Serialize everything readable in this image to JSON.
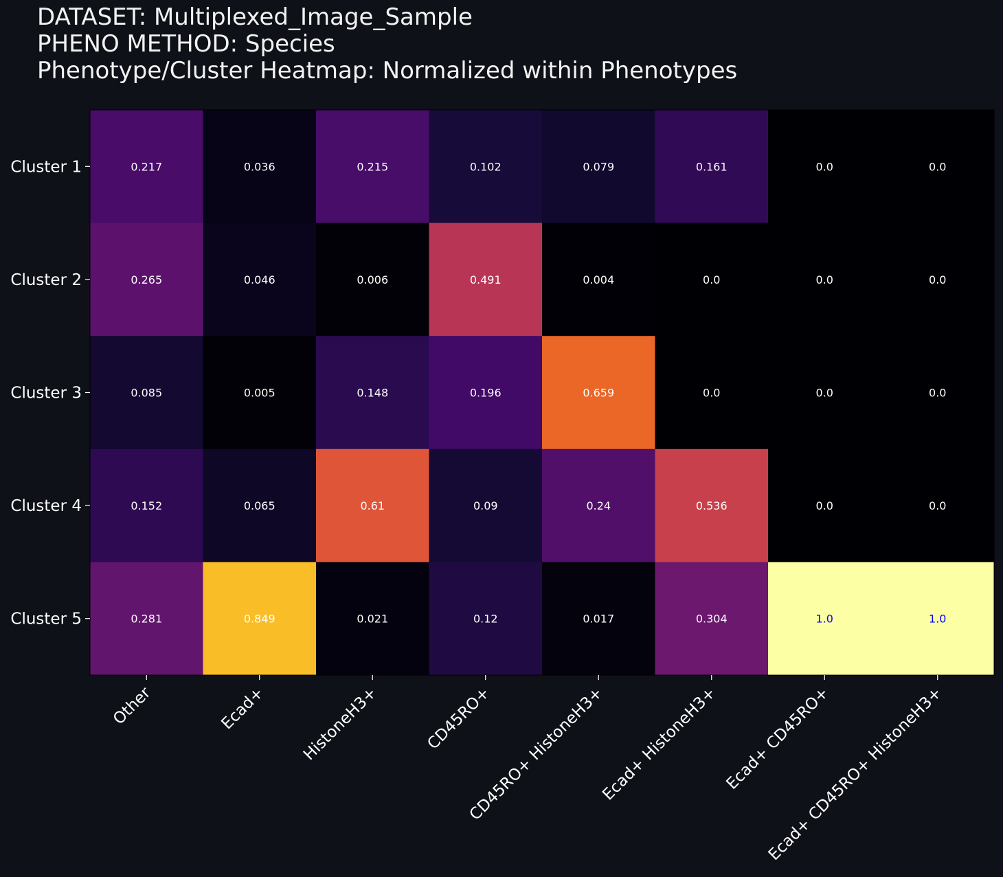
{
  "header": {
    "title_lines": [
      "DATASET: Multiplexed_Image_Sample",
      "PHENO METHOD: Species",
      "Phenotype/Cluster Heatmap: Normalized within Phenotypes"
    ]
  },
  "chart_data": {
    "type": "heatmap",
    "title": "Phenotype/Cluster Heatmap: Normalized within Phenotypes",
    "colormap": "inferno",
    "value_range": [
      0,
      1
    ],
    "x_tick_labels": [
      "Other",
      "Ecad+",
      "HistoneH3+",
      "CD45RO+",
      "CD45RO+ HistoneH3+",
      "Ecad+ HistoneH3+",
      "Ecad+ CD45RO+",
      "Ecad+ CD45RO+ HistoneH3+"
    ],
    "y_tick_labels": [
      "Cluster 1",
      "Cluster 2",
      "Cluster 3",
      "Cluster 4",
      "Cluster 5"
    ],
    "values": [
      [
        0.217,
        0.036,
        0.215,
        0.102,
        0.079,
        0.161,
        0.0,
        0.0
      ],
      [
        0.265,
        0.046,
        0.006,
        0.491,
        0.004,
        0.0,
        0.0,
        0.0
      ],
      [
        0.085,
        0.005,
        0.148,
        0.196,
        0.659,
        0.0,
        0.0,
        0.0
      ],
      [
        0.152,
        0.065,
        0.61,
        0.09,
        0.24,
        0.536,
        0.0,
        0.0
      ],
      [
        0.281,
        0.849,
        0.021,
        0.12,
        0.017,
        0.304,
        1.0,
        1.0
      ]
    ],
    "annotation_labels": [
      [
        "0.217",
        "0.036",
        "0.215",
        "0.102",
        "0.079",
        "0.161",
        "0.0",
        "0.0"
      ],
      [
        "0.265",
        "0.046",
        "0.006",
        "0.491",
        "0.004",
        "0.0",
        "0.0",
        "0.0"
      ],
      [
        "0.085",
        "0.005",
        "0.148",
        "0.196",
        "0.659",
        "0.0",
        "0.0",
        "0.0"
      ],
      [
        "0.152",
        "0.065",
        "0.61",
        "0.09",
        "0.24",
        "0.536",
        "0.0",
        "0.0"
      ],
      [
        "0.281",
        "0.849",
        "0.021",
        "0.12",
        "0.017",
        "0.304",
        "1.0",
        "1.0"
      ]
    ],
    "colors": {
      "background": "#0e1117",
      "annotation_text": "#ffffff",
      "annotation_text_on_max": "#0000ff",
      "tick_label": "#ffffff"
    }
  }
}
